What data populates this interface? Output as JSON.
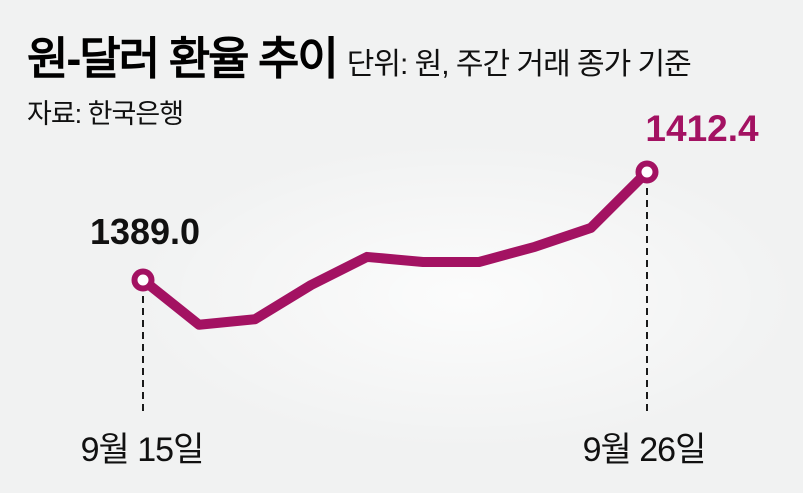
{
  "header": {
    "title": "원-달러 환율 추이",
    "unit_note": "단위: 원, 주간 거래 종가 기준",
    "source": "자료: 한국은행"
  },
  "chart_data": {
    "type": "line",
    "title": "원-달러 환율 추이",
    "unit": "원",
    "basis_note": "주간 거래 종가 기준",
    "source": "자료: 한국은행",
    "series": [
      {
        "name": "원-달러 환율",
        "values": [
          1389.0,
          1379.3,
          1380.5,
          1387.9,
          1394.0,
          1392.9,
          1392.9,
          1396.2,
          1400.3,
          1412.4
        ]
      }
    ],
    "x_first_label": "9월 15일",
    "x_last_label": "9월 26일",
    "labeled_points": {
      "first": {
        "x": "9월 15일",
        "value": 1389.0,
        "label": "1389.0"
      },
      "last": {
        "x": "9월 26일",
        "value": 1412.4,
        "label": "1412.4"
      }
    },
    "ylim": [
      1375,
      1416
    ],
    "grid": false,
    "legend": false,
    "marker": "open-circle",
    "line_color": "#a31262",
    "guide_line_color": "#1a1a1a",
    "start_label_color": "#111111"
  },
  "colors": {
    "accent": "#a31262",
    "background": "#f1f2f2",
    "text": "#111111"
  }
}
